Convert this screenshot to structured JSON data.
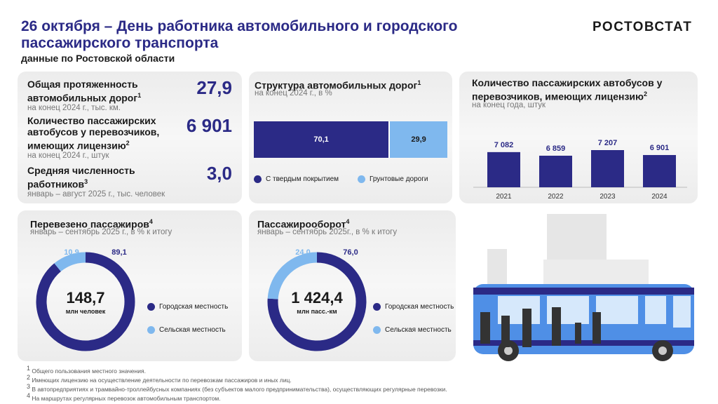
{
  "header": {
    "title": "26 октября – День работника автомобильного и городского пассажирского транспорта",
    "subtitle": "данные по Ростовской области",
    "logo": "РОСТОВСТАТ"
  },
  "colors": {
    "dark": "#2b2a86",
    "light": "#7fb8ee"
  },
  "indicators": [
    {
      "title": "Общая протяженность автомобильных дорог",
      "sup": "1",
      "note": "на конец 2024 г., тыс. км.",
      "value": "27,9"
    },
    {
      "title": "Количество пассажирских автобусов у перевозчиков, имеющих лицензию",
      "sup": "2",
      "note": "на конец 2024 г., штук",
      "value": "6 901"
    },
    {
      "title": "Средняя численность работников",
      "sup": "3",
      "note": "январь – август 2025 г., тыс. человек",
      "value": "3,0"
    }
  ],
  "chart_data": [
    {
      "type": "bar",
      "stacked": true,
      "title": "Структура автомобильных дорог",
      "sup": "1",
      "subtitle": "на конец 2024 г., в %",
      "series": [
        {
          "name": "С твердым покрытием",
          "value": 70.1,
          "label": "70,1"
        },
        {
          "name": "Грунтовые дороги",
          "value": 29.9,
          "label": "29,9"
        }
      ]
    },
    {
      "type": "bar",
      "title": "Количество пассажирских автобусов у перевозчиков, имеющих лицензию",
      "sup": "2",
      "subtitle": "на конец года, штук",
      "categories": [
        "2021",
        "2022",
        "2023",
        "2024"
      ],
      "values": [
        7082,
        6859,
        7207,
        6901
      ],
      "labels": [
        "7 082",
        "6 859",
        "7 207",
        "6 901"
      ],
      "ylim": [
        4900,
        8600
      ]
    },
    {
      "type": "pie",
      "title": "Перевезено пассажиров",
      "sup": "4",
      "subtitle": "январь – сентябрь 2025 г., в % к итогу",
      "center_value": "148,7",
      "center_unit": "млн человек",
      "series": [
        {
          "name": "Городская местность",
          "value": 89.1,
          "label": "89,1"
        },
        {
          "name": "Сельская местность",
          "value": 10.9,
          "label": "10,9"
        }
      ]
    },
    {
      "type": "pie",
      "title": "Пассажирооборот",
      "sup": "4",
      "subtitle": "январь – сентябрь 2025г., в % к итогу",
      "center_value": "1 424,4",
      "center_unit": "млн пасс.-км",
      "series": [
        {
          "name": "Городская местность",
          "value": 76.0,
          "label": "76,0"
        },
        {
          "name": "Сельская местность",
          "value": 24.0,
          "label": "24,0"
        }
      ]
    }
  ],
  "footnotes": [
    "Общего пользования местного значения.",
    "Имеющих лицензию на осуществление деятельности по перевозкам пассажиров и иных лиц.",
    "В автопредприятиях и трамвайно-троллейбусных компаниях (без субъектов малого предпринимательства), осуществляющих регулярные перевозки.",
    "На маршрутах регулярных перевозок автомобильным транспортом."
  ]
}
